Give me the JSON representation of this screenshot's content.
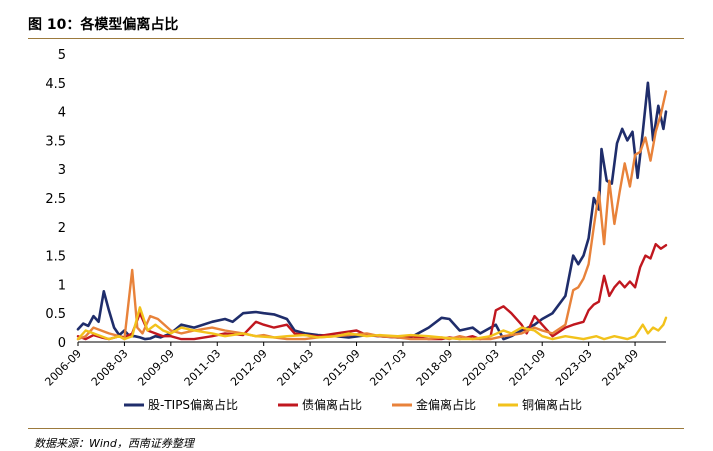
{
  "header": {
    "title": "图 10：各模型偏离占比"
  },
  "footer": {
    "source": "数据来源：Wind，西南证券整理"
  },
  "colors": {
    "rule": "#9c7a3c",
    "axis": "#000000"
  },
  "chart_data": {
    "type": "line",
    "title": "",
    "xlabel": "",
    "ylabel": "",
    "ylim": [
      0,
      5
    ],
    "yticks": [
      "0",
      "0.5",
      "1",
      "1.5",
      "2",
      "2.5",
      "3",
      "3.5",
      "4",
      "4.5",
      "5"
    ],
    "xlim": [
      "2006-09",
      "2025-09"
    ],
    "xticks": [
      "2006-09",
      "2008-03",
      "2009-09",
      "2011-03",
      "2012-09",
      "2014-03",
      "2015-09",
      "2017-03",
      "2018-09",
      "2020-03",
      "2021-09",
      "2023-03",
      "2024-09"
    ],
    "grid": false,
    "legend_position": "bottom",
    "series": [
      {
        "name": "股-TIPS偏离占比",
        "color": "#1f2d6b",
        "points": [
          [
            "2006-09",
            0.22
          ],
          [
            "2006-11",
            0.32
          ],
          [
            "2007-01",
            0.28
          ],
          [
            "2007-03",
            0.45
          ],
          [
            "2007-05",
            0.35
          ],
          [
            "2007-07",
            0.88
          ],
          [
            "2007-09",
            0.55
          ],
          [
            "2007-11",
            0.25
          ],
          [
            "2008-01",
            0.12
          ],
          [
            "2008-03",
            0.2
          ],
          [
            "2008-05",
            0.1
          ],
          [
            "2008-07",
            0.1
          ],
          [
            "2008-09",
            0.08
          ],
          [
            "2008-11",
            0.05
          ],
          [
            "2009-01",
            0.06
          ],
          [
            "2009-03",
            0.1
          ],
          [
            "2009-05",
            0.08
          ],
          [
            "2009-09",
            0.15
          ],
          [
            "2010-01",
            0.3
          ],
          [
            "2010-06",
            0.25
          ],
          [
            "2011-01",
            0.35
          ],
          [
            "2011-06",
            0.4
          ],
          [
            "2011-09",
            0.35
          ],
          [
            "2012-01",
            0.5
          ],
          [
            "2012-06",
            0.52
          ],
          [
            "2012-09",
            0.5
          ],
          [
            "2013-01",
            0.48
          ],
          [
            "2013-06",
            0.4
          ],
          [
            "2013-09",
            0.2
          ],
          [
            "2014-01",
            0.15
          ],
          [
            "2014-06",
            0.12
          ],
          [
            "2015-01",
            0.1
          ],
          [
            "2015-06",
            0.08
          ],
          [
            "2016-01",
            0.12
          ],
          [
            "2016-06",
            0.1
          ],
          [
            "2017-01",
            0.08
          ],
          [
            "2017-06",
            0.08
          ],
          [
            "2018-01",
            0.25
          ],
          [
            "2018-06",
            0.42
          ],
          [
            "2018-09",
            0.4
          ],
          [
            "2019-01",
            0.2
          ],
          [
            "2019-06",
            0.25
          ],
          [
            "2019-09",
            0.15
          ],
          [
            "2020-01",
            0.25
          ],
          [
            "2020-03",
            0.3
          ],
          [
            "2020-06",
            0.05
          ],
          [
            "2020-09",
            0.1
          ],
          [
            "2021-01",
            0.2
          ],
          [
            "2021-06",
            0.3
          ],
          [
            "2021-09",
            0.4
          ],
          [
            "2022-01",
            0.5
          ],
          [
            "2022-06",
            0.8
          ],
          [
            "2022-09",
            1.5
          ],
          [
            "2022-11",
            1.35
          ],
          [
            "2023-01",
            1.5
          ],
          [
            "2023-03",
            1.8
          ],
          [
            "2023-05",
            2.5
          ],
          [
            "2023-07",
            2.3
          ],
          [
            "2023-08",
            3.35
          ],
          [
            "2023-10",
            2.8
          ],
          [
            "2023-12",
            2.75
          ],
          [
            "2024-02",
            3.45
          ],
          [
            "2024-04",
            3.7
          ],
          [
            "2024-06",
            3.5
          ],
          [
            "2024-08",
            3.65
          ],
          [
            "2024-10",
            2.85
          ],
          [
            "2024-12",
            3.65
          ],
          [
            "2025-02",
            4.5
          ],
          [
            "2025-04",
            3.5
          ],
          [
            "2025-06",
            4.1
          ],
          [
            "2025-08",
            3.7
          ],
          [
            "2025-09",
            4.0
          ]
        ]
      },
      {
        "name": "债偏离占比",
        "color": "#c0171f",
        "points": [
          [
            "2006-09",
            0.1
          ],
          [
            "2006-12",
            0.05
          ],
          [
            "2007-03",
            0.12
          ],
          [
            "2007-06",
            0.08
          ],
          [
            "2007-09",
            0.05
          ],
          [
            "2008-01",
            0.1
          ],
          [
            "2008-03",
            0.08
          ],
          [
            "2008-06",
            0.15
          ],
          [
            "2008-09",
            0.5
          ],
          [
            "2008-12",
            0.2
          ],
          [
            "2009-03",
            0.15
          ],
          [
            "2009-06",
            0.1
          ],
          [
            "2009-09",
            0.1
          ],
          [
            "2010-01",
            0.05
          ],
          [
            "2010-06",
            0.05
          ],
          [
            "2011-01",
            0.1
          ],
          [
            "2011-06",
            0.15
          ],
          [
            "2012-01",
            0.12
          ],
          [
            "2012-06",
            0.35
          ],
          [
            "2012-09",
            0.3
          ],
          [
            "2013-01",
            0.25
          ],
          [
            "2013-06",
            0.3
          ],
          [
            "2013-09",
            0.15
          ],
          [
            "2014-01",
            0.12
          ],
          [
            "2014-06",
            0.1
          ],
          [
            "2015-01",
            0.15
          ],
          [
            "2015-06",
            0.18
          ],
          [
            "2015-09",
            0.2
          ],
          [
            "2016-01",
            0.12
          ],
          [
            "2016-06",
            0.1
          ],
          [
            "2017-01",
            0.08
          ],
          [
            "2017-06",
            0.1
          ],
          [
            "2018-01",
            0.05
          ],
          [
            "2018-06",
            0.05
          ],
          [
            "2018-09",
            0.08
          ],
          [
            "2019-01",
            0.05
          ],
          [
            "2019-06",
            0.1
          ],
          [
            "2019-09",
            0.05
          ],
          [
            "2020-01",
            0.1
          ],
          [
            "2020-03",
            0.55
          ],
          [
            "2020-06",
            0.62
          ],
          [
            "2020-09",
            0.5
          ],
          [
            "2021-01",
            0.3
          ],
          [
            "2021-03",
            0.15
          ],
          [
            "2021-06",
            0.45
          ],
          [
            "2021-09",
            0.3
          ],
          [
            "2022-01",
            0.1
          ],
          [
            "2022-06",
            0.25
          ],
          [
            "2022-09",
            0.3
          ],
          [
            "2023-01",
            0.35
          ],
          [
            "2023-03",
            0.55
          ],
          [
            "2023-05",
            0.65
          ],
          [
            "2023-07",
            0.7
          ],
          [
            "2023-09",
            1.15
          ],
          [
            "2023-11",
            0.8
          ],
          [
            "2024-01",
            0.95
          ],
          [
            "2024-03",
            1.05
          ],
          [
            "2024-05",
            0.95
          ],
          [
            "2024-07",
            1.05
          ],
          [
            "2024-09",
            0.95
          ],
          [
            "2024-11",
            1.3
          ],
          [
            "2025-01",
            1.5
          ],
          [
            "2025-03",
            1.45
          ],
          [
            "2025-05",
            1.7
          ],
          [
            "2025-07",
            1.62
          ],
          [
            "2025-09",
            1.68
          ]
        ]
      },
      {
        "name": "金偏离占比",
        "color": "#e8823a",
        "points": [
          [
            "2006-09",
            0.05
          ],
          [
            "2006-12",
            0.1
          ],
          [
            "2007-03",
            0.25
          ],
          [
            "2007-06",
            0.2
          ],
          [
            "2007-09",
            0.15
          ],
          [
            "2008-01",
            0.1
          ],
          [
            "2008-03",
            0.05
          ],
          [
            "2008-06",
            1.25
          ],
          [
            "2008-08",
            0.25
          ],
          [
            "2008-10",
            0.15
          ],
          [
            "2009-01",
            0.45
          ],
          [
            "2009-04",
            0.4
          ],
          [
            "2009-09",
            0.2
          ],
          [
            "2010-01",
            0.15
          ],
          [
            "2010-06",
            0.2
          ],
          [
            "2011-01",
            0.25
          ],
          [
            "2011-06",
            0.2
          ],
          [
            "2012-01",
            0.15
          ],
          [
            "2012-06",
            0.1
          ],
          [
            "2012-09",
            0.12
          ],
          [
            "2013-01",
            0.08
          ],
          [
            "2013-06",
            0.05
          ],
          [
            "2014-01",
            0.05
          ],
          [
            "2014-06",
            0.08
          ],
          [
            "2015-01",
            0.1
          ],
          [
            "2015-06",
            0.12
          ],
          [
            "2016-01",
            0.15
          ],
          [
            "2016-06",
            0.1
          ],
          [
            "2017-01",
            0.08
          ],
          [
            "2017-06",
            0.05
          ],
          [
            "2018-01",
            0.05
          ],
          [
            "2018-06",
            0.08
          ],
          [
            "2018-09",
            0.05
          ],
          [
            "2019-01",
            0.1
          ],
          [
            "2019-06",
            0.05
          ],
          [
            "2020-01",
            0.05
          ],
          [
            "2020-06",
            0.1
          ],
          [
            "2021-01",
            0.15
          ],
          [
            "2021-06",
            0.25
          ],
          [
            "2021-09",
            0.2
          ],
          [
            "2022-01",
            0.15
          ],
          [
            "2022-06",
            0.3
          ],
          [
            "2022-09",
            0.9
          ],
          [
            "2022-11",
            0.95
          ],
          [
            "2023-01",
            1.1
          ],
          [
            "2023-03",
            1.35
          ],
          [
            "2023-05",
            2.0
          ],
          [
            "2023-07",
            2.6
          ],
          [
            "2023-09",
            1.7
          ],
          [
            "2023-11",
            2.8
          ],
          [
            "2024-01",
            2.05
          ],
          [
            "2024-03",
            2.6
          ],
          [
            "2024-05",
            3.1
          ],
          [
            "2024-07",
            2.7
          ],
          [
            "2024-09",
            3.25
          ],
          [
            "2024-11",
            3.3
          ],
          [
            "2025-01",
            3.55
          ],
          [
            "2025-03",
            3.15
          ],
          [
            "2025-05",
            3.65
          ],
          [
            "2025-07",
            3.95
          ],
          [
            "2025-09",
            4.35
          ]
        ]
      },
      {
        "name": "铜偏离占比",
        "color": "#f2c21b",
        "points": [
          [
            "2006-09",
            0.05
          ],
          [
            "2006-12",
            0.2
          ],
          [
            "2007-03",
            0.15
          ],
          [
            "2007-06",
            0.1
          ],
          [
            "2007-09",
            0.05
          ],
          [
            "2008-01",
            0.1
          ],
          [
            "2008-03",
            0.05
          ],
          [
            "2008-06",
            0.1
          ],
          [
            "2008-09",
            0.6
          ],
          [
            "2008-12",
            0.2
          ],
          [
            "2009-03",
            0.3
          ],
          [
            "2009-06",
            0.2
          ],
          [
            "2009-09",
            0.15
          ],
          [
            "2010-01",
            0.25
          ],
          [
            "2010-06",
            0.2
          ],
          [
            "2011-01",
            0.15
          ],
          [
            "2011-06",
            0.1
          ],
          [
            "2012-01",
            0.15
          ],
          [
            "2012-06",
            0.1
          ],
          [
            "2013-01",
            0.08
          ],
          [
            "2013-06",
            0.1
          ],
          [
            "2014-01",
            0.12
          ],
          [
            "2014-06",
            0.08
          ],
          [
            "2015-01",
            0.1
          ],
          [
            "2015-06",
            0.15
          ],
          [
            "2016-01",
            0.1
          ],
          [
            "2016-06",
            0.12
          ],
          [
            "2017-01",
            0.1
          ],
          [
            "2017-06",
            0.12
          ],
          [
            "2018-01",
            0.1
          ],
          [
            "2018-06",
            0.08
          ],
          [
            "2019-01",
            0.05
          ],
          [
            "2019-06",
            0.05
          ],
          [
            "2020-01",
            0.1
          ],
          [
            "2020-06",
            0.2
          ],
          [
            "2020-09",
            0.15
          ],
          [
            "2021-01",
            0.25
          ],
          [
            "2021-06",
            0.2
          ],
          [
            "2021-09",
            0.1
          ],
          [
            "2022-01",
            0.05
          ],
          [
            "2022-06",
            0.1
          ],
          [
            "2023-01",
            0.05
          ],
          [
            "2023-06",
            0.1
          ],
          [
            "2023-09",
            0.05
          ],
          [
            "2024-01",
            0.1
          ],
          [
            "2024-06",
            0.05
          ],
          [
            "2024-09",
            0.1
          ],
          [
            "2024-12",
            0.3
          ],
          [
            "2025-02",
            0.15
          ],
          [
            "2025-04",
            0.25
          ],
          [
            "2025-06",
            0.2
          ],
          [
            "2025-08",
            0.3
          ],
          [
            "2025-09",
            0.42
          ]
        ]
      }
    ]
  }
}
